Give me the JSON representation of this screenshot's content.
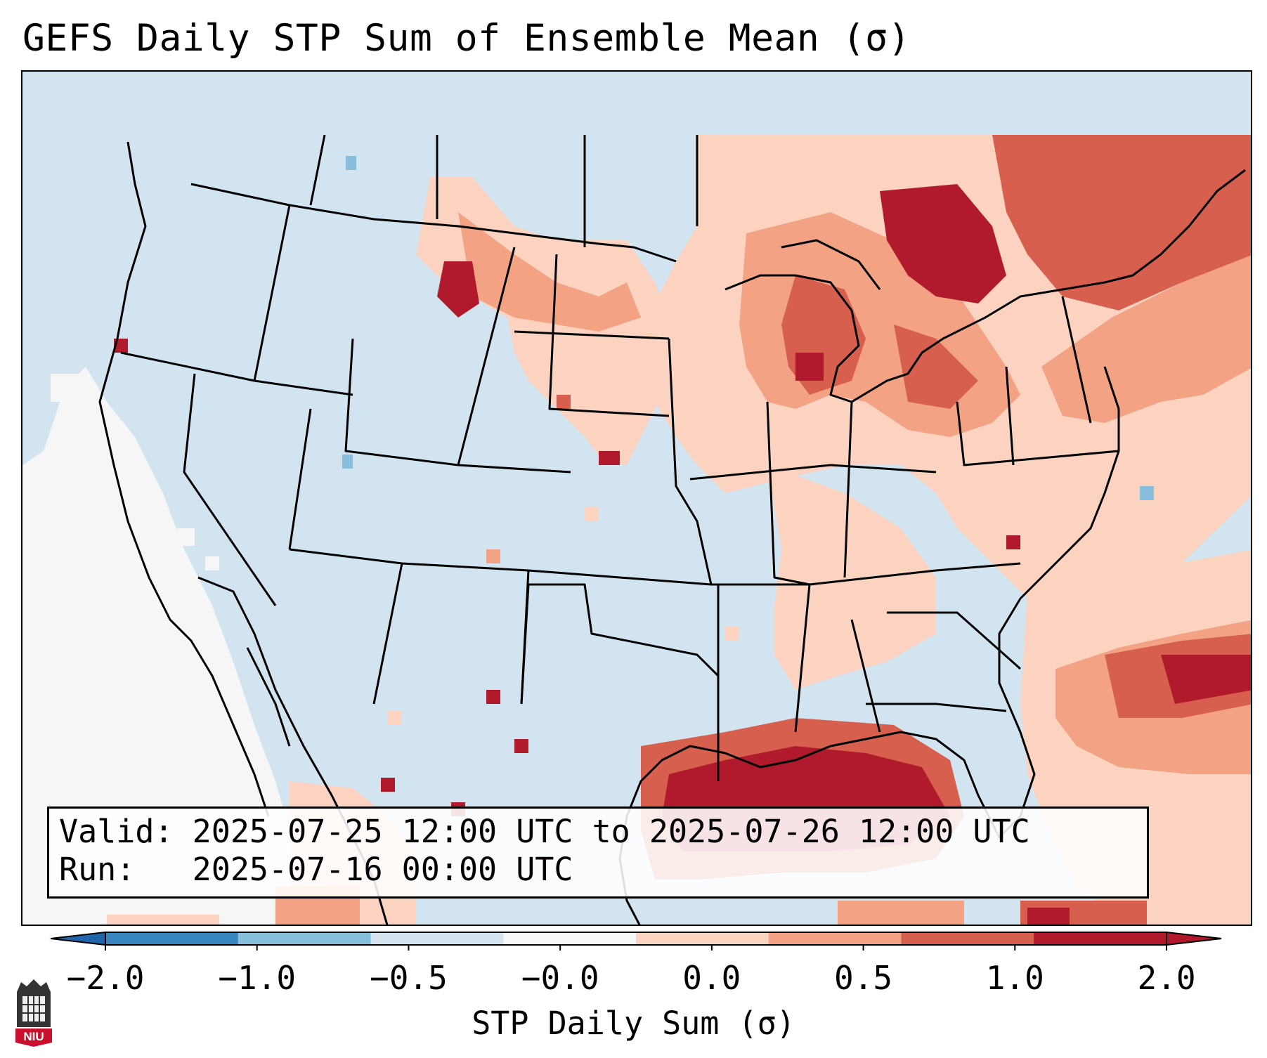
{
  "title": "GEFS Daily STP Sum of Ensemble Mean (σ)",
  "info": {
    "valid_line": "Valid: 2025-07-25 12:00 UTC to 2025-07-26 12:00 UTC",
    "run_line": "Run:   2025-07-16 00:00 UTC"
  },
  "colorbar": {
    "label": "STP Daily Sum (σ)",
    "ticks": [
      "−2.0",
      "−1.0",
      "−0.5",
      "−0.0",
      "0.0",
      "0.5",
      "1.0",
      "2.0"
    ],
    "colors": [
      "#3a87c0",
      "#87bedc",
      "#d2e4f0",
      "#f6f6f6",
      "#fbd3c0",
      "#f3a284",
      "#d6604d",
      "#b01a2c"
    ],
    "extend_colors": {
      "low": "#2166ac",
      "high": "#b2182b"
    }
  },
  "map": {
    "background_color": "#d2e4f0",
    "regions": [
      {
        "name": "gulf-of-mexico-max",
        "level": "above-2.0"
      },
      {
        "name": "great-lakes-ontario-max",
        "level": "1.0-2.0"
      },
      {
        "name": "northern-plains-max",
        "level": "1.0-2.0"
      },
      {
        "name": "atlantic-offshore-max",
        "level": "1.0-2.0"
      },
      {
        "name": "pacific-offshore-near-zero",
        "level": "-0.0-0.0"
      }
    ]
  },
  "logo": {
    "text": "NIU"
  }
}
